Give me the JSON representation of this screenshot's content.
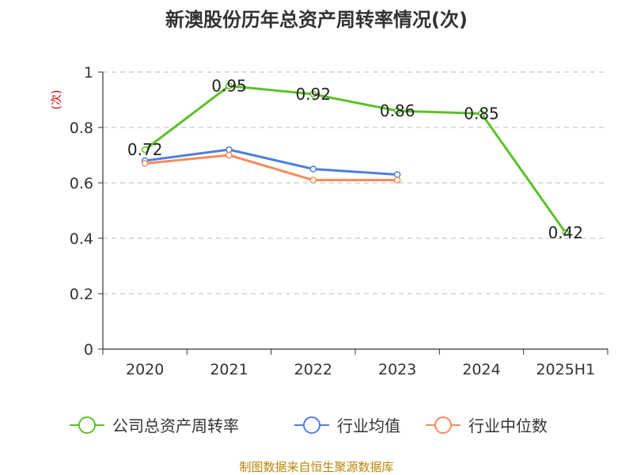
{
  "chart_data": {
    "type": "line",
    "title": "新澳股份历年总资产周转率情况(次)",
    "ylabel": "(次)",
    "xlabel": "",
    "categories": [
      "2020",
      "2021",
      "2022",
      "2023",
      "2024",
      "2025H1"
    ],
    "ylim": [
      0,
      1
    ],
    "yticks": [
      "0",
      "0.2",
      "0.4",
      "0.6",
      "0.8",
      "1"
    ],
    "grid": "horizontal dashed",
    "legend_position": "bottom",
    "series": [
      {
        "name": "公司总资产周转率",
        "color": "#5cc128",
        "values": [
          0.72,
          0.95,
          0.92,
          0.86,
          0.85,
          0.42
        ],
        "labels": [
          "0.72",
          "0.95",
          "0.92",
          "0.86",
          "0.85",
          "0.42"
        ]
      },
      {
        "name": "行业均值",
        "color": "#4f7fdc",
        "values": [
          0.68,
          0.72,
          0.65,
          0.63,
          null,
          null
        ]
      },
      {
        "name": "行业中位数",
        "color": "#f58c5b",
        "values": [
          0.67,
          0.7,
          0.61,
          0.61,
          null,
          null
        ]
      }
    ]
  },
  "source": "制图数据来自恒生聚源数据库"
}
